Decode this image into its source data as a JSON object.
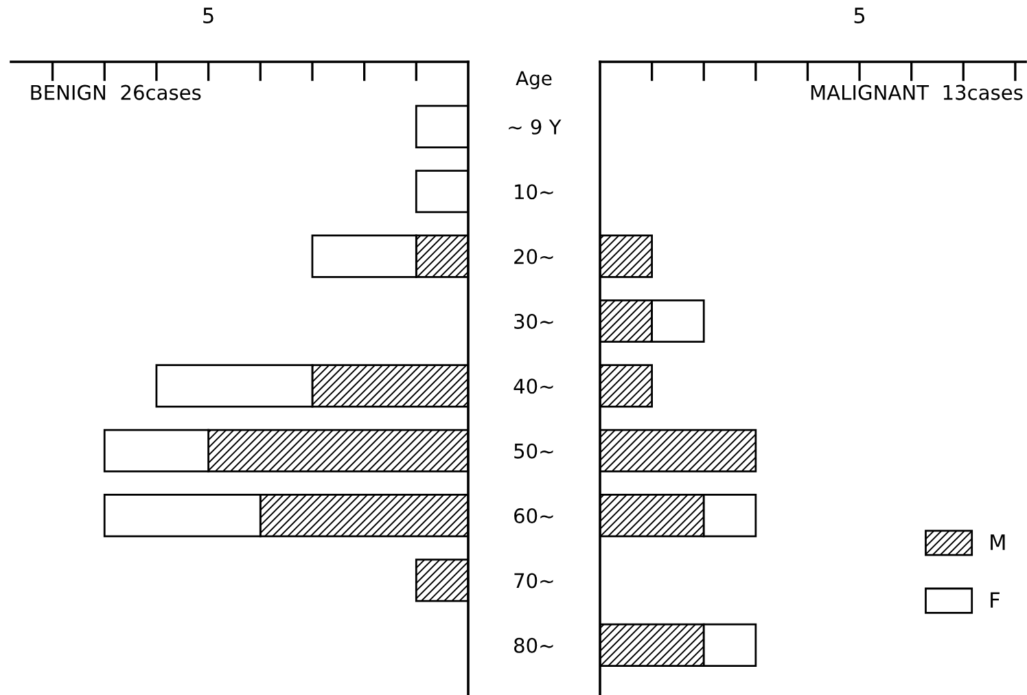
{
  "chart_data": [
    {
      "type": "bar",
      "orientation": "horizontal",
      "stacked": true,
      "title": "BENIGN  26cases",
      "ylabel": "Age",
      "categories": [
        "~ 9 Y",
        "10~",
        "20~",
        "30~",
        "40~",
        "50~",
        "60~",
        "70~",
        "80~"
      ],
      "series": [
        {
          "color": "#000000",
          "values": [
            null,
            null,
            1,
            null,
            3,
            5,
            4,
            1,
            null
          ]
        },
        {
          "color": "#ffffff",
          "values": [
            1,
            1,
            2,
            null,
            3,
            2,
            3,
            null,
            null
          ]
        }
      ],
      "xlim": [
        8.8,
        0
      ],
      "xticks": [
        {
          "value": 1,
          "label": null
        },
        {
          "value": 2,
          "label": null
        },
        {
          "value": 3,
          "label": null
        },
        {
          "value": 4,
          "label": null
        },
        5,
        {
          "value": 6,
          "label": null
        },
        {
          "value": 7,
          "label": null
        },
        {
          "value": 8,
          "label": null
        }
      ],
      "grid": false
    },
    {
      "type": "bar",
      "orientation": "horizontal",
      "stacked": true,
      "title": "MALIGNANT  13cases",
      "categories": [
        null,
        null,
        null,
        null,
        null,
        null,
        null,
        null,
        null
      ],
      "series": [
        {
          "name": "M",
          "color": "#000000",
          "values": [
            null,
            null,
            1,
            1,
            1,
            3,
            2,
            null,
            2
          ]
        },
        {
          "name": "F",
          "color": "#ffffff",
          "values": [
            null,
            null,
            null,
            1,
            null,
            null,
            1,
            null,
            1
          ]
        }
      ],
      "xlim": [
        0,
        8.2
      ],
      "xticks": [
        {
          "value": 1,
          "label": null
        },
        {
          "value": 2,
          "label": null
        },
        {
          "value": 3,
          "label": null
        },
        {
          "value": 4,
          "label": null
        },
        5,
        {
          "value": 6,
          "label": null
        },
        {
          "value": 7,
          "label": null
        },
        {
          "value": 8,
          "label": null
        }
      ],
      "tick_labels": "x",
      "grid": false,
      "legend": "lower right"
    }
  ]
}
